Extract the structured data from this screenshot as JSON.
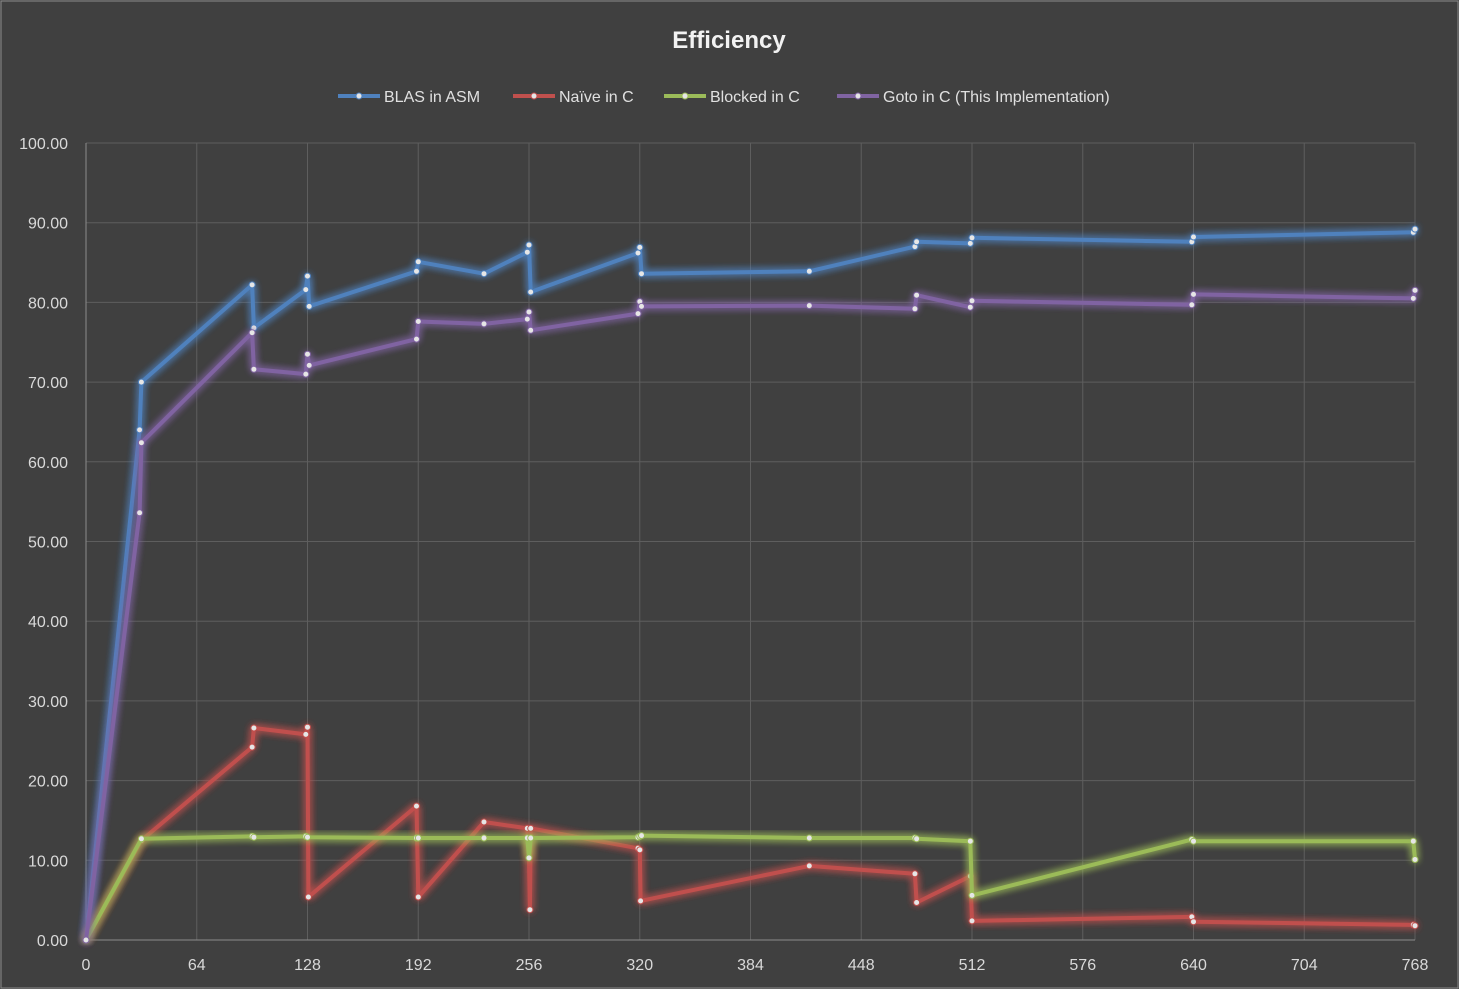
{
  "chart_data": {
    "type": "line",
    "title": "Efficiency",
    "xlabel": "",
    "ylabel": "",
    "xlim": [
      0,
      768
    ],
    "ylim": [
      0,
      100
    ],
    "x_ticks": [
      0,
      64,
      128,
      192,
      256,
      320,
      384,
      448,
      512,
      576,
      640,
      704,
      768
    ],
    "y_ticks": [
      "0.00",
      "10.00",
      "20.00",
      "30.00",
      "40.00",
      "50.00",
      "60.00",
      "70.00",
      "80.00",
      "90.00",
      "100.00"
    ],
    "grid": true,
    "legend_position": "top",
    "series": [
      {
        "name": "BLAS in ASM",
        "color": "#4f81bd",
        "points": [
          [
            0,
            0
          ],
          [
            31,
            64
          ],
          [
            32,
            70
          ],
          [
            96,
            82.2
          ],
          [
            97,
            76.8
          ],
          [
            127,
            81.6
          ],
          [
            128,
            83.3
          ],
          [
            129,
            79.5
          ],
          [
            191,
            83.9
          ],
          [
            192,
            85.1
          ],
          [
            230,
            83.6
          ],
          [
            255,
            86.3
          ],
          [
            256,
            87.2
          ],
          [
            257,
            81.3
          ],
          [
            319,
            86.2
          ],
          [
            320,
            86.9
          ],
          [
            321,
            83.6
          ],
          [
            418,
            83.9
          ],
          [
            479,
            87
          ],
          [
            480,
            87.6
          ],
          [
            511,
            87.4
          ],
          [
            512,
            88.1
          ],
          [
            639,
            87.6
          ],
          [
            640,
            88.2
          ],
          [
            767,
            88.8
          ],
          [
            768,
            89.2
          ]
        ]
      },
      {
        "name": "Naïve in C",
        "color": "#c0504d",
        "points": [
          [
            0,
            0
          ],
          [
            32,
            12.5
          ],
          [
            96,
            24.2
          ],
          [
            97,
            26.6
          ],
          [
            127,
            25.8
          ],
          [
            128,
            26.7
          ],
          [
            128.5,
            5.4
          ],
          [
            191,
            16.8
          ],
          [
            192,
            5.4
          ],
          [
            230,
            14.8
          ],
          [
            255,
            14
          ],
          [
            256,
            10.3
          ],
          [
            256.5,
            3.8
          ],
          [
            257,
            14
          ],
          [
            319,
            11.5
          ],
          [
            320,
            11.3
          ],
          [
            320.5,
            4.9
          ],
          [
            418,
            9.3
          ],
          [
            479,
            8.3
          ],
          [
            480,
            4.7
          ],
          [
            511,
            8
          ],
          [
            512,
            2.4
          ],
          [
            639,
            2.9
          ],
          [
            640,
            2.3
          ],
          [
            767,
            1.9
          ],
          [
            768,
            1.8
          ]
        ]
      },
      {
        "name": "Blocked in C",
        "color": "#9bbb59",
        "points": [
          [
            0,
            0
          ],
          [
            32,
            12.7
          ],
          [
            96,
            13
          ],
          [
            97,
            12.9
          ],
          [
            127,
            13
          ],
          [
            128,
            12.9
          ],
          [
            191,
            12.8
          ],
          [
            192,
            12.8
          ],
          [
            230,
            12.8
          ],
          [
            255,
            12.8
          ],
          [
            256,
            10.3
          ],
          [
            257,
            12.8
          ],
          [
            319,
            12.9
          ],
          [
            320,
            13
          ],
          [
            321,
            13.1
          ],
          [
            418,
            12.8
          ],
          [
            479,
            12.8
          ],
          [
            480,
            12.7
          ],
          [
            511,
            12.4
          ],
          [
            512,
            5.6
          ],
          [
            639,
            12.6
          ],
          [
            640,
            12.4
          ],
          [
            767,
            12.4
          ],
          [
            768,
            10.1
          ]
        ]
      },
      {
        "name": "Goto in C (This Implementation)",
        "color": "#8064a2",
        "points": [
          [
            0,
            0
          ],
          [
            31,
            53.6
          ],
          [
            32,
            62.4
          ],
          [
            96,
            76.2
          ],
          [
            97,
            71.6
          ],
          [
            127,
            71
          ],
          [
            128,
            73.5
          ],
          [
            129,
            72.1
          ],
          [
            191,
            75.4
          ],
          [
            192,
            77.6
          ],
          [
            230,
            77.3
          ],
          [
            255,
            77.9
          ],
          [
            256,
            78.8
          ],
          [
            257,
            76.5
          ],
          [
            319,
            78.6
          ],
          [
            320,
            80.1
          ],
          [
            321,
            79.5
          ],
          [
            418,
            79.6
          ],
          [
            479,
            79.2
          ],
          [
            480,
            80.9
          ],
          [
            511,
            79.4
          ],
          [
            512,
            80.2
          ],
          [
            639,
            79.7
          ],
          [
            640,
            81
          ],
          [
            767,
            80.5
          ],
          [
            768,
            81.5
          ]
        ]
      }
    ]
  }
}
